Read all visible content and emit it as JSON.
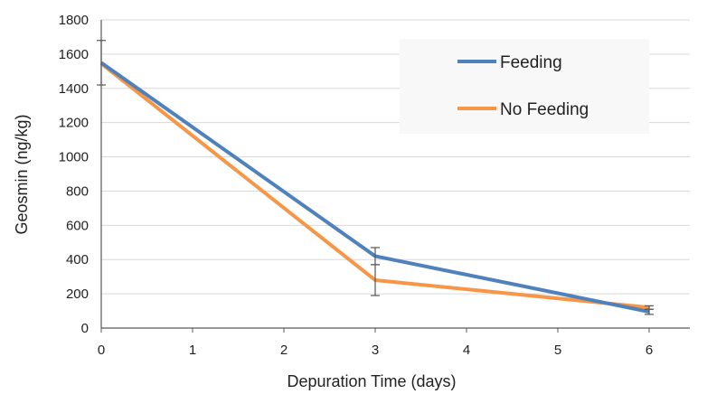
{
  "chart_data": {
    "type": "line",
    "title": "",
    "xlabel": "Depuration Time (days)",
    "ylabel": "Geosmin (ng/kg)",
    "xlim": [
      0,
      6.5
    ],
    "ylim": [
      0,
      1800
    ],
    "xticks": [
      0,
      1,
      2,
      3,
      4,
      5,
      6
    ],
    "yticks": [
      0,
      200,
      400,
      600,
      800,
      1000,
      1200,
      1400,
      1600,
      1800
    ],
    "grid": "horizontal",
    "legend_position": "top-right",
    "series": [
      {
        "name": "Feeding",
        "color": "#4f81bd",
        "x": [
          0,
          3,
          6
        ],
        "y": [
          1550,
          420,
          95
        ],
        "err": [
          130,
          50,
          15
        ]
      },
      {
        "name": "No Feeding",
        "color": "#f79646",
        "x": [
          0,
          3,
          6
        ],
        "y": [
          1545,
          280,
          120
        ],
        "err": [
          0,
          90,
          10
        ]
      }
    ]
  }
}
